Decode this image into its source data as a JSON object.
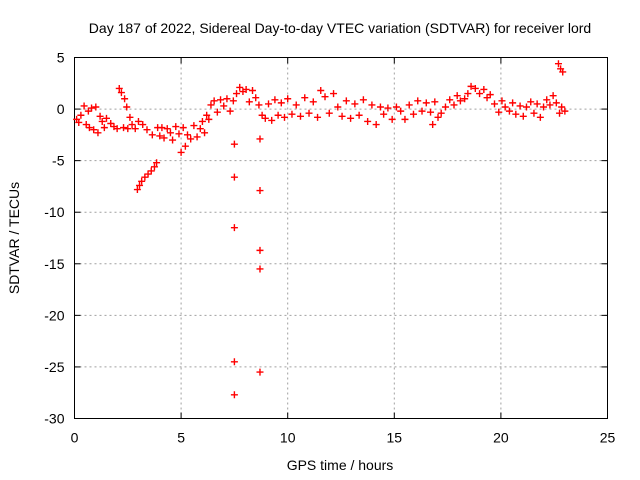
{
  "chart_data": {
    "type": "scatter",
    "title": "Day 187 of 2022, Sidereal Day-to-day VTEC variation (SDTVAR) for receiver lord",
    "xlabel": "GPS time / hours",
    "ylabel": "SDTVAR / TECUs",
    "xlim": [
      0,
      25
    ],
    "ylim": [
      -30,
      5
    ],
    "xticks": [
      0,
      5,
      10,
      15,
      20,
      25
    ],
    "yticks": [
      5,
      0,
      -5,
      -10,
      -15,
      -20,
      -25,
      -30
    ],
    "grid": true,
    "marker": "+",
    "color": "#ff0000",
    "series": [
      {
        "name": "SDTVAR",
        "points": [
          [
            0.1,
            -1.0
          ],
          [
            0.2,
            -1.3
          ],
          [
            0.3,
            -0.6
          ],
          [
            0.45,
            0.3
          ],
          [
            0.55,
            -1.5
          ],
          [
            0.65,
            -0.2
          ],
          [
            0.7,
            -1.8
          ],
          [
            0.8,
            0.1
          ],
          [
            0.9,
            -2.0
          ],
          [
            1.0,
            0.2
          ],
          [
            1.1,
            -2.3
          ],
          [
            1.2,
            -0.7
          ],
          [
            1.3,
            -1.2
          ],
          [
            1.4,
            -1.8
          ],
          [
            1.5,
            -0.9
          ],
          [
            1.7,
            -1.4
          ],
          [
            1.85,
            -1.7
          ],
          [
            2.0,
            -1.9
          ],
          [
            2.1,
            2.0
          ],
          [
            2.2,
            1.6
          ],
          [
            2.3,
            -1.8
          ],
          [
            2.35,
            1.0
          ],
          [
            2.45,
            0.2
          ],
          [
            2.5,
            -1.9
          ],
          [
            2.6,
            -0.8
          ],
          [
            2.7,
            -1.5
          ],
          [
            2.85,
            -1.9
          ],
          [
            2.95,
            -7.8
          ],
          [
            3.0,
            -1.2
          ],
          [
            3.05,
            -7.4
          ],
          [
            3.15,
            -7.0
          ],
          [
            3.2,
            -1.5
          ],
          [
            3.3,
            -6.6
          ],
          [
            3.4,
            -2.0
          ],
          [
            3.45,
            -6.3
          ],
          [
            3.6,
            -6.0
          ],
          [
            3.65,
            -2.5
          ],
          [
            3.75,
            -5.6
          ],
          [
            3.85,
            -5.2
          ],
          [
            3.9,
            -1.8
          ],
          [
            4.0,
            -2.6
          ],
          [
            4.1,
            -1.8
          ],
          [
            4.2,
            -2.8
          ],
          [
            4.35,
            -1.9
          ],
          [
            4.5,
            -2.3
          ],
          [
            4.6,
            -3.0
          ],
          [
            4.75,
            -1.7
          ],
          [
            4.9,
            -2.4
          ],
          [
            5.0,
            -4.2
          ],
          [
            5.1,
            -1.8
          ],
          [
            5.2,
            -3.6
          ],
          [
            5.3,
            -2.5
          ],
          [
            5.45,
            -2.9
          ],
          [
            5.6,
            -1.6
          ],
          [
            5.75,
            -2.7
          ],
          [
            5.9,
            -1.9
          ],
          [
            6.0,
            -1.2
          ],
          [
            6.1,
            -2.3
          ],
          [
            6.2,
            -0.6
          ],
          [
            6.3,
            -1.0
          ],
          [
            6.4,
            0.4
          ],
          [
            6.55,
            0.8
          ],
          [
            6.7,
            -0.3
          ],
          [
            6.85,
            0.9
          ],
          [
            7.0,
            0.3
          ],
          [
            7.15,
            1.0
          ],
          [
            7.3,
            -0.2
          ],
          [
            7.45,
            0.8
          ],
          [
            7.5,
            -3.4
          ],
          [
            7.5,
            -6.6
          ],
          [
            7.5,
            -11.5
          ],
          [
            7.5,
            -24.5
          ],
          [
            7.5,
            -27.7
          ],
          [
            7.6,
            1.5
          ],
          [
            7.75,
            2.1
          ],
          [
            7.9,
            1.7
          ],
          [
            8.05,
            1.9
          ],
          [
            8.2,
            0.7
          ],
          [
            8.35,
            1.8
          ],
          [
            8.5,
            1.1
          ],
          [
            8.65,
            0.4
          ],
          [
            8.7,
            -2.9
          ],
          [
            8.7,
            -7.9
          ],
          [
            8.7,
            -13.7
          ],
          [
            8.7,
            -15.5
          ],
          [
            8.7,
            -25.5
          ],
          [
            8.8,
            -0.6
          ],
          [
            8.95,
            -0.9
          ],
          [
            9.1,
            0.5
          ],
          [
            9.25,
            -1.1
          ],
          [
            9.4,
            0.9
          ],
          [
            9.55,
            -0.6
          ],
          [
            9.7,
            0.6
          ],
          [
            9.85,
            -0.8
          ],
          [
            10.0,
            1.0
          ],
          [
            10.2,
            -0.5
          ],
          [
            10.4,
            0.4
          ],
          [
            10.6,
            -0.7
          ],
          [
            10.8,
            1.1
          ],
          [
            11.0,
            -0.4
          ],
          [
            11.2,
            0.7
          ],
          [
            11.4,
            -0.8
          ],
          [
            11.55,
            1.8
          ],
          [
            11.75,
            1.2
          ],
          [
            11.95,
            -0.4
          ],
          [
            12.15,
            1.5
          ],
          [
            12.35,
            0.2
          ],
          [
            12.55,
            -0.7
          ],
          [
            12.75,
            0.8
          ],
          [
            12.95,
            -0.9
          ],
          [
            13.15,
            0.5
          ],
          [
            13.35,
            -0.6
          ],
          [
            13.55,
            0.9
          ],
          [
            13.75,
            -1.2
          ],
          [
            13.95,
            0.4
          ],
          [
            14.15,
            -1.5
          ],
          [
            14.35,
            0.2
          ],
          [
            14.5,
            -0.5
          ],
          [
            14.7,
            0.1
          ],
          [
            14.9,
            -1.0
          ],
          [
            15.1,
            0.2
          ],
          [
            15.3,
            -0.2
          ],
          [
            15.5,
            -1.0
          ],
          [
            15.7,
            0.4
          ],
          [
            15.9,
            -0.5
          ],
          [
            16.1,
            0.8
          ],
          [
            16.3,
            -0.2
          ],
          [
            16.5,
            0.6
          ],
          [
            16.7,
            -0.3
          ],
          [
            16.8,
            -1.5
          ],
          [
            16.9,
            0.7
          ],
          [
            17.05,
            -0.8
          ],
          [
            17.2,
            -0.4
          ],
          [
            17.4,
            0.2
          ],
          [
            17.6,
            0.9
          ],
          [
            17.8,
            0.4
          ],
          [
            17.95,
            1.3
          ],
          [
            18.1,
            0.8
          ],
          [
            18.3,
            1.0
          ],
          [
            18.45,
            1.5
          ],
          [
            18.6,
            2.2
          ],
          [
            18.8,
            2.0
          ],
          [
            19.0,
            1.5
          ],
          [
            19.2,
            1.9
          ],
          [
            19.35,
            1.1
          ],
          [
            19.5,
            1.4
          ],
          [
            19.7,
            0.5
          ],
          [
            19.9,
            -0.3
          ],
          [
            20.05,
            0.8
          ],
          [
            20.2,
            0.2
          ],
          [
            20.4,
            -0.2
          ],
          [
            20.55,
            0.6
          ],
          [
            20.7,
            -0.5
          ],
          [
            20.9,
            0.3
          ],
          [
            21.05,
            -0.7
          ],
          [
            21.2,
            0.2
          ],
          [
            21.4,
            0.7
          ],
          [
            21.55,
            -0.4
          ],
          [
            21.7,
            0.5
          ],
          [
            21.85,
            -0.8
          ],
          [
            22.0,
            0.2
          ],
          [
            22.15,
            0.9
          ],
          [
            22.3,
            0.4
          ],
          [
            22.45,
            1.3
          ],
          [
            22.6,
            0.6
          ],
          [
            22.7,
            4.4
          ],
          [
            22.75,
            -0.4
          ],
          [
            22.8,
            3.9
          ],
          [
            22.85,
            0.2
          ],
          [
            22.9,
            3.6
          ],
          [
            23.0,
            -0.2
          ]
        ]
      }
    ]
  }
}
